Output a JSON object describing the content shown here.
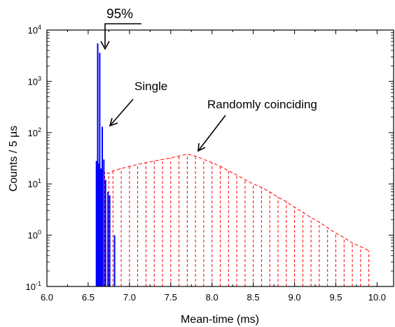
{
  "chart_data": {
    "type": "bar",
    "xlabel": "Mean-time (ms)",
    "ylabel": "Counts / 5 µs",
    "xlim": [
      6.0,
      10.2
    ],
    "ylim": [
      0.1,
      10000
    ],
    "yscale": "log",
    "grid": false,
    "x_ticks": [
      "6.0",
      "6.5",
      "7.0",
      "7.5",
      "8.0",
      "8.5",
      "9.0",
      "9.5",
      "10.0"
    ],
    "y_ticks": [
      {
        "base": "10",
        "exp": "-1"
      },
      {
        "base": "10",
        "exp": "0"
      },
      {
        "base": "10",
        "exp": "1"
      },
      {
        "base": "10",
        "exp": "2"
      },
      {
        "base": "10",
        "exp": "3"
      },
      {
        "base": "10",
        "exp": "4"
      }
    ],
    "series": [
      {
        "name": "Single",
        "color": "#0000ff",
        "style": "bars",
        "x": [
          6.6,
          6.615,
          6.625,
          6.64,
          6.655,
          6.67,
          6.69,
          6.71,
          6.74,
          6.76,
          6.82
        ],
        "y": [
          28,
          5500,
          25,
          3600,
          20,
          130,
          30,
          12,
          7,
          6,
          1.0
        ]
      },
      {
        "name": "Randomly coinciding",
        "color": "#ff0000",
        "style": "dashed",
        "x": [
          6.6,
          6.65,
          6.7,
          6.75,
          6.8,
          6.9,
          7.0,
          7.1,
          7.2,
          7.3,
          7.4,
          7.5,
          7.6,
          7.7,
          7.8,
          7.9,
          8.0,
          8.1,
          8.2,
          8.3,
          8.4,
          8.5,
          8.6,
          8.7,
          8.8,
          8.9,
          9.0,
          9.1,
          9.2,
          9.3,
          9.4,
          9.5,
          9.6,
          9.7,
          9.8,
          9.9
        ],
        "y": [
          20,
          18,
          17,
          16,
          18,
          20,
          22,
          24,
          26,
          28,
          30,
          32,
          35,
          38,
          35,
          30,
          26,
          22,
          18,
          15,
          12,
          10,
          8.5,
          7,
          5.5,
          4.5,
          3.5,
          2.8,
          2.2,
          1.8,
          1.4,
          1.1,
          0.9,
          0.7,
          0.6,
          0.5
        ]
      }
    ],
    "annotations": [
      {
        "text": "95%",
        "target_x": 6.64,
        "target_y": 4500
      },
      {
        "text": "Single",
        "target_x": 6.69,
        "target_y": 140
      },
      {
        "text": "Randomly coinciding",
        "target_x": 7.8,
        "target_y": 45
      }
    ]
  }
}
